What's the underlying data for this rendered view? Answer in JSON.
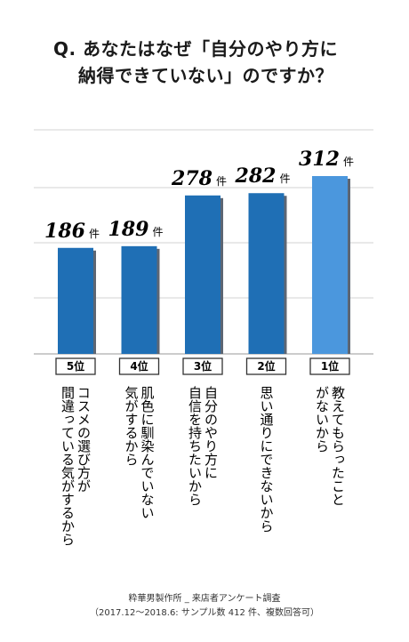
{
  "title": {
    "line1": "Q. あなたはなぜ「自分のやり方に",
    "line2": "納得できていない」のですか？"
  },
  "footer": {
    "line1": "粋華男製作所 _ 来店者アンケート調査",
    "line2": "（2017.12〜2018.6: サンプル数 412 件、複数回答可）"
  },
  "chart_data": {
    "type": "bar",
    "categories": [
      "コスメの選び方が間違っている気がするから",
      "肌色に馴染んでいない気がするから",
      "自分のやり方に自信を持ちたいから",
      "思い通りにできないから",
      "教えてもらったことがないから"
    ],
    "category_lines": [
      [
        "コスメの選び方が",
        "間違っている気がするから"
      ],
      [
        "肌色に馴染んでいない",
        "気がするから"
      ],
      [
        "自分のやり方に",
        "自信を持ちたいから"
      ],
      [
        "思い通りにできないから"
      ],
      [
        "教えてもらったこと",
        "がないから"
      ]
    ],
    "ranks": [
      "5位",
      "4位",
      "3位",
      "2位",
      "1位"
    ],
    "values": [
      186,
      189,
      278,
      282,
      312
    ],
    "value_unit": "件",
    "colors": [
      "#1f6fb5",
      "#1f6fb5",
      "#1f6fb5",
      "#1f6fb5",
      "#4b97dd"
    ],
    "shadow_color": "#5d6673",
    "grid": true,
    "title": "",
    "xlabel": "",
    "ylabel": ""
  }
}
